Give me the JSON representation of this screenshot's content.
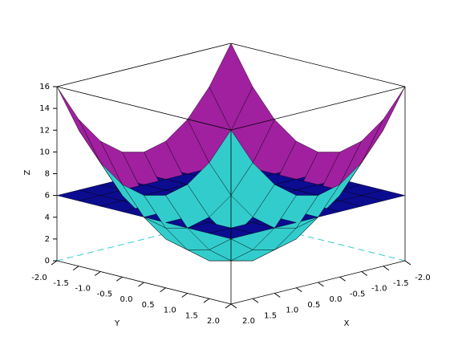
{
  "chart_data": {
    "type": "surface3d",
    "xlabel": "X",
    "ylabel": "Y",
    "zlabel": "Z",
    "xlim": [
      -2,
      2
    ],
    "ylim": [
      -2,
      2
    ],
    "zlim": [
      0,
      16
    ],
    "xticks": [
      {
        "value": -2,
        "label": "-2.0"
      },
      {
        "value": -1.5,
        "label": "-1.5"
      },
      {
        "value": -1,
        "label": "-1.0"
      },
      {
        "value": -0.5,
        "label": "-0.5"
      },
      {
        "value": 0,
        "label": "0.0"
      },
      {
        "value": 0.5,
        "label": "0.5"
      },
      {
        "value": 1,
        "label": "1.0"
      },
      {
        "value": 1.5,
        "label": "1.5"
      },
      {
        "value": 2,
        "label": "2.0"
      }
    ],
    "yticks": [
      {
        "value": -2,
        "label": "-2.0"
      },
      {
        "value": -1.5,
        "label": "-1.5"
      },
      {
        "value": -1,
        "label": "-1.0"
      },
      {
        "value": -0.5,
        "label": "-0.5"
      },
      {
        "value": 0,
        "label": "0.0"
      },
      {
        "value": 0.5,
        "label": "0.5"
      },
      {
        "value": 1,
        "label": "1.0"
      },
      {
        "value": 1.5,
        "label": "1.5"
      },
      {
        "value": 2,
        "label": "2.0"
      }
    ],
    "zticks": [
      0,
      2,
      4,
      6,
      8,
      10,
      12,
      14,
      16
    ],
    "surfaces": [
      {
        "color": "#a020a0",
        "back_color": "#33cccc",
        "x": [
          -2,
          -1.5,
          -1,
          -0.5,
          0,
          0.5,
          1,
          1.5,
          2
        ],
        "y": [
          -2,
          -1.5,
          -1,
          -0.5,
          0,
          0.5,
          1,
          1.5,
          2
        ],
        "z": [
          [
            16,
            12.5,
            10,
            8.5,
            8,
            8.5,
            10,
            12.5,
            16
          ],
          [
            12.5,
            9,
            6.5,
            5,
            4.5,
            5,
            6.5,
            9,
            12.5
          ],
          [
            10,
            6.5,
            4,
            2.5,
            2,
            2.5,
            4,
            6.5,
            10
          ],
          [
            8.5,
            5,
            2.5,
            1,
            0.5,
            1,
            2.5,
            5,
            8.5
          ],
          [
            8,
            4.5,
            2,
            0.5,
            0,
            0.5,
            2,
            4.5,
            8
          ],
          [
            8.5,
            5,
            2.5,
            1,
            0.5,
            1,
            2.5,
            5,
            8.5
          ],
          [
            10,
            6.5,
            4,
            2.5,
            2,
            2.5,
            4,
            6.5,
            10
          ],
          [
            12.5,
            9,
            6.5,
            5,
            4.5,
            5,
            6.5,
            9,
            12.5
          ],
          [
            16,
            12.5,
            10,
            8.5,
            8,
            8.5,
            10,
            12.5,
            16
          ]
        ]
      },
      {
        "color": "#0c0c90",
        "back_color": "#0c0c90",
        "x": [
          -2,
          -1.5,
          -1,
          -0.5,
          0,
          0.5,
          1,
          1.5,
          2
        ],
        "y": [
          -2,
          -1.5,
          -1,
          -0.5,
          0,
          0.5,
          1,
          1.5,
          2
        ],
        "z": [
          [
            6,
            6,
            6,
            6,
            6,
            6,
            6,
            6,
            6
          ],
          [
            6,
            6,
            6,
            6,
            6,
            6,
            6,
            6,
            6
          ],
          [
            6,
            6,
            6,
            6,
            6,
            6,
            6,
            6,
            6
          ],
          [
            6,
            6,
            6,
            6,
            6,
            6,
            6,
            6,
            6
          ],
          [
            6,
            6,
            6,
            6,
            6,
            6,
            6,
            6,
            6
          ],
          [
            6,
            6,
            6,
            6,
            6,
            6,
            6,
            6,
            6
          ],
          [
            6,
            6,
            6,
            6,
            6,
            6,
            6,
            6,
            6
          ],
          [
            6,
            6,
            6,
            6,
            6,
            6,
            6,
            6,
            6
          ],
          [
            6,
            6,
            6,
            6,
            6,
            6,
            6,
            6,
            6
          ]
        ]
      }
    ]
  }
}
